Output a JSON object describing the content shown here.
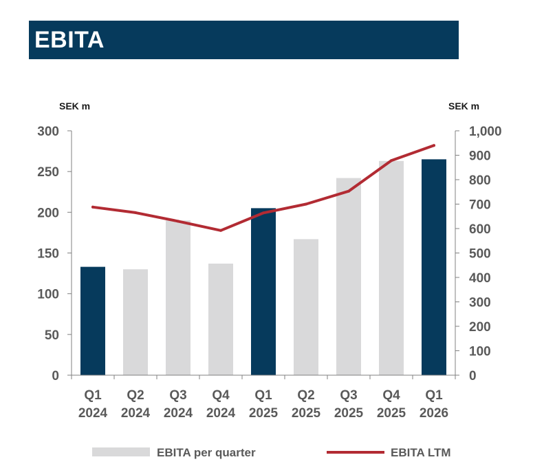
{
  "title": "EBITA",
  "colors": {
    "title_bg": "#063a5c",
    "bar_highlight": "#063a5c",
    "bar_default": "#d9d9da",
    "line": "#b22b33",
    "axis": "#808080",
    "tick_text": "#595959"
  },
  "chart_data": {
    "type": "bar",
    "categories": [
      [
        "Q1",
        "2024"
      ],
      [
        "Q2",
        "2024"
      ],
      [
        "Q3",
        "2024"
      ],
      [
        "Q4",
        "2024"
      ],
      [
        "Q1",
        "2025"
      ],
      [
        "Q2",
        "2025"
      ],
      [
        "Q3",
        "2025"
      ],
      [
        "Q4",
        "2025"
      ],
      [
        "Q1",
        "2026"
      ]
    ],
    "series": [
      {
        "name": "EBITA per quarter",
        "type": "bar",
        "axis": "left",
        "values": [
          133,
          130,
          190,
          137,
          205,
          167,
          242,
          263,
          265
        ],
        "highlight": [
          true,
          false,
          false,
          false,
          true,
          false,
          false,
          false,
          true
        ]
      },
      {
        "name": "EBITA LTM",
        "type": "line",
        "axis": "right",
        "values": [
          688,
          665,
          630,
          592,
          664,
          700,
          753,
          878,
          940
        ]
      }
    ],
    "left_axis": {
      "label": "SEK m",
      "ylim": [
        0,
        300
      ],
      "ticks": [
        "0",
        "50",
        "100",
        "150",
        "200",
        "250",
        "300"
      ]
    },
    "right_axis": {
      "label": "SEK m",
      "ylim": [
        0,
        1000
      ],
      "ticks": [
        "0",
        "100",
        "200",
        "300",
        "400",
        "500",
        "600",
        "700",
        "800",
        "900",
        "1,000"
      ]
    },
    "grid": false,
    "legend_position": "bottom"
  }
}
